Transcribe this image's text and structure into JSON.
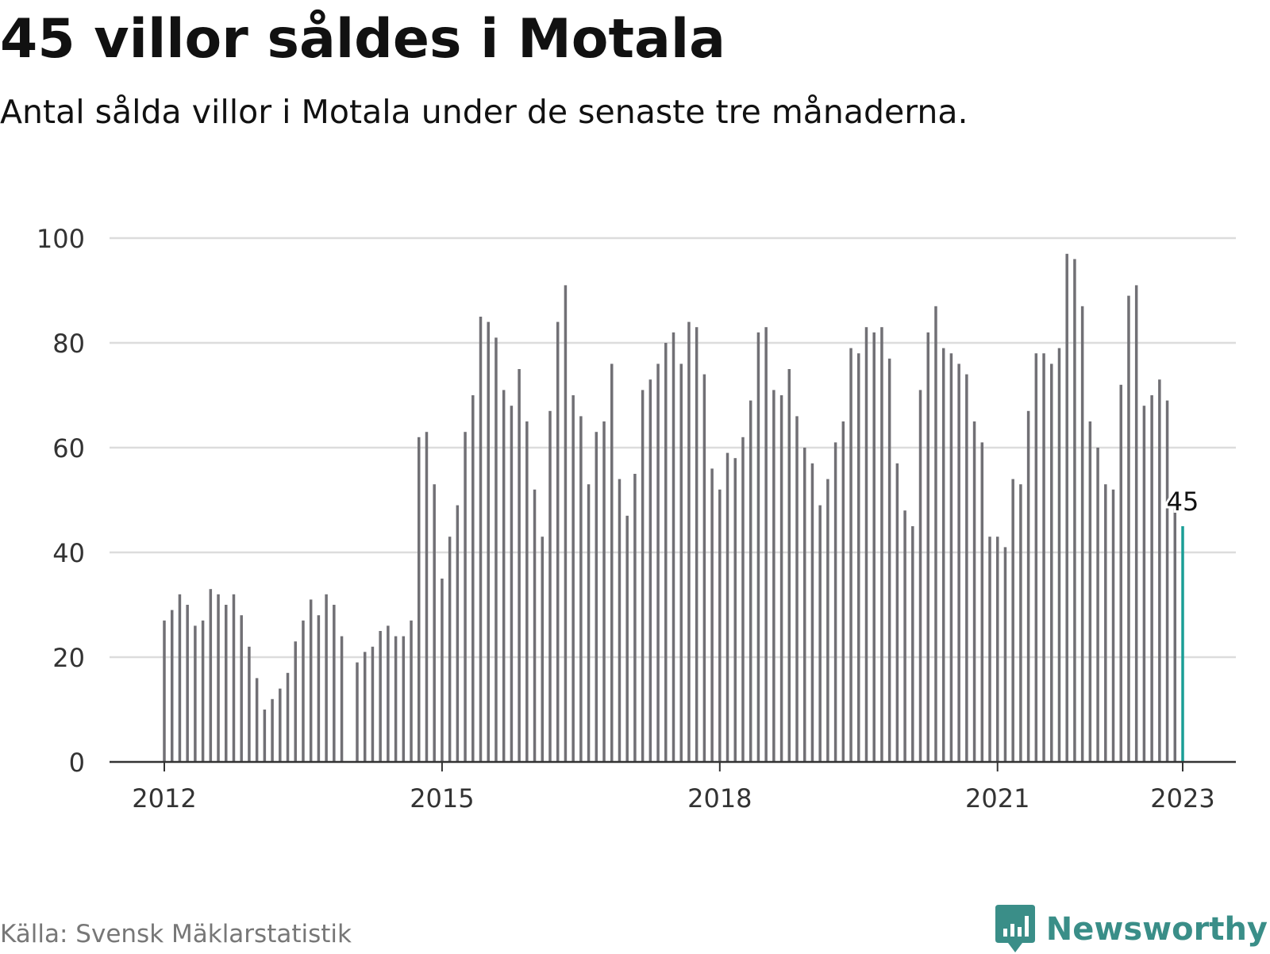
{
  "header": {
    "title": "45 villor såldes i Motala",
    "subtitle": "Antal sålda villor i Motala under de senaste tre månaderna."
  },
  "footer": {
    "source": "Källa: Svensk Mäklarstatistik",
    "brand": "Newsworthy",
    "brand_icon": "bar-chart-speech-bubble-icon"
  },
  "colors": {
    "bar": "#717075",
    "highlight": "#1a9e96",
    "grid": "#dcdcdc",
    "axis": "#333333",
    "brand": "#3a8e88"
  },
  "chart_data": {
    "type": "bar",
    "title": "45 villor såldes i Motala",
    "subtitle": "Antal sålda villor i Motala under de senaste tre månaderna.",
    "xlabel": "",
    "ylabel": "",
    "ylim": [
      0,
      100
    ],
    "yticks": [
      0,
      20,
      40,
      60,
      80,
      100
    ],
    "grid": true,
    "x_tick_labels": [
      "2012",
      "2015",
      "2018",
      "2021",
      "2023"
    ],
    "x_tick_dates": [
      "2012-01",
      "2015-01",
      "2018-01",
      "2021-01",
      "2023-01"
    ],
    "highlight": {
      "date": "2023-01",
      "value": 45,
      "label": "45"
    },
    "x": [
      "2012-01",
      "2012-02",
      "2012-03",
      "2012-04",
      "2012-05",
      "2012-06",
      "2012-07",
      "2012-08",
      "2012-09",
      "2012-10",
      "2012-11",
      "2012-12",
      "2013-01",
      "2013-02",
      "2013-03",
      "2013-04",
      "2013-05",
      "2013-06",
      "2013-07",
      "2013-08",
      "2013-09",
      "2013-10",
      "2013-11",
      "2013-12",
      "2014-01",
      "2014-02",
      "2014-03",
      "2014-04",
      "2014-05",
      "2014-06",
      "2014-07",
      "2014-08",
      "2014-09",
      "2014-10",
      "2014-11",
      "2014-12",
      "2015-01",
      "2015-02",
      "2015-03",
      "2015-04",
      "2015-05",
      "2015-06",
      "2015-07",
      "2015-08",
      "2015-09",
      "2015-10",
      "2015-11",
      "2015-12",
      "2016-01",
      "2016-02",
      "2016-03",
      "2016-04",
      "2016-05",
      "2016-06",
      "2016-07",
      "2016-08",
      "2016-09",
      "2016-10",
      "2016-11",
      "2016-12",
      "2017-01",
      "2017-02",
      "2017-03",
      "2017-04",
      "2017-05",
      "2017-06",
      "2017-07",
      "2017-08",
      "2017-09",
      "2017-10",
      "2017-11",
      "2017-12",
      "2018-01",
      "2018-02",
      "2018-03",
      "2018-04",
      "2018-05",
      "2018-06",
      "2018-07",
      "2018-08",
      "2018-09",
      "2018-10",
      "2018-11",
      "2018-12",
      "2019-01",
      "2019-02",
      "2019-03",
      "2019-04",
      "2019-05",
      "2019-06",
      "2019-07",
      "2019-08",
      "2019-09",
      "2019-10",
      "2019-11",
      "2019-12",
      "2020-01",
      "2020-02",
      "2020-03",
      "2020-04",
      "2020-05",
      "2020-06",
      "2020-07",
      "2020-08",
      "2020-09",
      "2020-10",
      "2020-11",
      "2020-12",
      "2021-01",
      "2021-02",
      "2021-03",
      "2021-04",
      "2021-05",
      "2021-06",
      "2021-07",
      "2021-08",
      "2021-09",
      "2021-10",
      "2021-11",
      "2021-12",
      "2022-01",
      "2022-02",
      "2022-03",
      "2022-04",
      "2022-05",
      "2022-06",
      "2022-07",
      "2022-08",
      "2022-09",
      "2022-10",
      "2022-11",
      "2022-12",
      "2023-01"
    ],
    "values": [
      27,
      29,
      32,
      30,
      26,
      27,
      33,
      32,
      30,
      32,
      28,
      22,
      16,
      10,
      12,
      14,
      17,
      23,
      27,
      31,
      28,
      32,
      30,
      24,
      null,
      19,
      21,
      22,
      25,
      26,
      24,
      24,
      27,
      62,
      63,
      53,
      35,
      43,
      49,
      63,
      70,
      85,
      84,
      81,
      71,
      68,
      75,
      65,
      52,
      43,
      67,
      84,
      91,
      70,
      66,
      53,
      63,
      65,
      76,
      54,
      47,
      55,
      71,
      73,
      76,
      80,
      82,
      76,
      84,
      83,
      74,
      56,
      52,
      59,
      58,
      62,
      69,
      82,
      83,
      71,
      70,
      75,
      66,
      60,
      57,
      49,
      54,
      61,
      65,
      79,
      78,
      83,
      82,
      83,
      77,
      57,
      48,
      45,
      71,
      82,
      87,
      79,
      78,
      76,
      74,
      65,
      61,
      43,
      43,
      41,
      54,
      53,
      67,
      78,
      78,
      76,
      79,
      97,
      96,
      87,
      65,
      60,
      53,
      52,
      72,
      89,
      91,
      68,
      70,
      73,
      69,
      49,
      45
    ]
  }
}
